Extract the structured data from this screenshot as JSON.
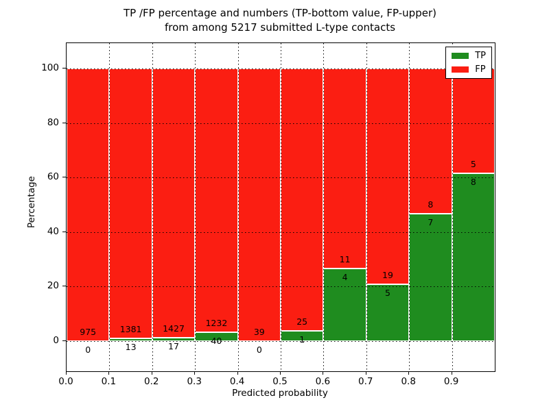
{
  "figure": {
    "title_line1": "TP /FP percentage and numbers (TP-bottom value, FP-upper)",
    "title_line2": "from among 5217 submitted L-type contacts"
  },
  "chart_data": {
    "type": "bar",
    "stacked": true,
    "title": "TP /FP percentage and numbers (TP-bottom value, FP-upper) from among 5217 submitted L-type contacts",
    "xlabel": "Predicted probability",
    "ylabel": "Percentage",
    "xlim": [
      0.0,
      1.0
    ],
    "ylim": [
      -11,
      109
    ],
    "x_tick_labels": [
      "0.0",
      "0.1",
      "0.2",
      "0.3",
      "0.4",
      "0.5",
      "0.6",
      "0.7",
      "0.8",
      "0.9"
    ],
    "y_tick_values": [
      0,
      20,
      40,
      60,
      80,
      100
    ],
    "grid": "dotted",
    "legend_position": "upper right",
    "total_contacts": 5217,
    "bin_width": 0.1,
    "bins": [
      {
        "range": "0.0-0.1",
        "tp": 0,
        "fp": 975,
        "tp_pct": 0.0
      },
      {
        "range": "0.1-0.2",
        "tp": 13,
        "fp": 1381,
        "tp_pct": 0.93
      },
      {
        "range": "0.2-0.3",
        "tp": 17,
        "fp": 1427,
        "tp_pct": 1.18
      },
      {
        "range": "0.3-0.4",
        "tp": 40,
        "fp": 1232,
        "tp_pct": 3.14
      },
      {
        "range": "0.4-0.5",
        "tp": 0,
        "fp": 39,
        "tp_pct": 0.0
      },
      {
        "range": "0.5-0.6",
        "tp": 1,
        "fp": 25,
        "tp_pct": 3.85
      },
      {
        "range": "0.6-0.7",
        "tp": 4,
        "fp": 11,
        "tp_pct": 26.67
      },
      {
        "range": "0.7-0.8",
        "tp": 5,
        "fp": 19,
        "tp_pct": 20.83
      },
      {
        "range": "0.8-0.9",
        "tp": 7,
        "fp": 8,
        "tp_pct": 46.67
      },
      {
        "range": "0.9-1.0",
        "tp": 8,
        "fp": 5,
        "tp_pct": 61.54
      }
    ],
    "series": [
      {
        "name": "TP",
        "color": "#1f8c1f",
        "role": "bottom"
      },
      {
        "name": "FP",
        "color": "#fb1e12",
        "role": "upper"
      }
    ]
  }
}
